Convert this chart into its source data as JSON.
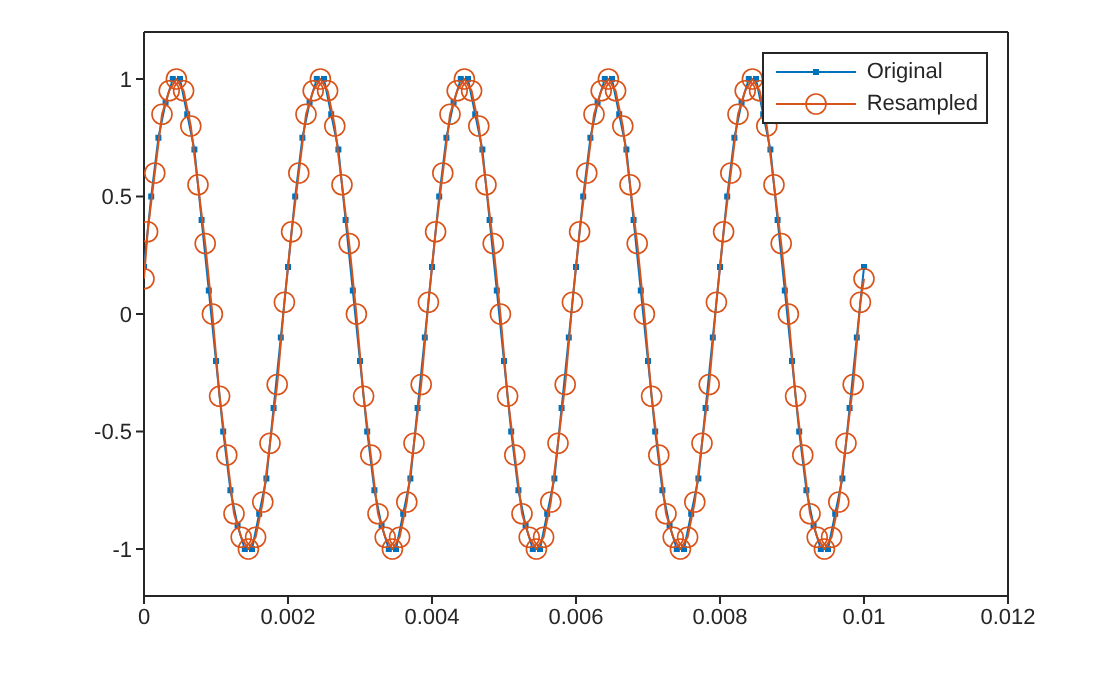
{
  "chart_data": {
    "type": "line",
    "xlim": [
      0,
      0.012
    ],
    "xticks": [
      0,
      0.002,
      0.004,
      0.006,
      0.008,
      0.01,
      0.012
    ],
    "ylim": [
      -1.2,
      1.2
    ],
    "yticks": [
      -1,
      -0.5,
      0,
      0.5,
      1
    ],
    "legend": "top right",
    "line_style": "solid",
    "series": [
      {
        "name": "Original",
        "color": "#0072bd",
        "marker": "square",
        "x": [
          0,
          0.0001,
          0.0002,
          0.0003,
          0.0004,
          0.0005,
          0.0006,
          0.0007,
          0.0008,
          0.0009,
          0.001,
          0.0011,
          0.0012,
          0.0013,
          0.0014,
          0.0015,
          0.0016,
          0.0017,
          0.0018,
          0.0019,
          0.002,
          0.0021,
          0.0022,
          0.0023,
          0.0024,
          0.0025,
          0.0026,
          0.0027,
          0.0028,
          0.0029,
          0.003,
          0.0031,
          0.0032,
          0.0033,
          0.0034,
          0.0035,
          0.0036,
          0.0037,
          0.0038,
          0.0039,
          0.004,
          0.0041,
          0.0042,
          0.0043,
          0.0044,
          0.0045,
          0.0046,
          0.0047,
          0.0048,
          0.0049,
          0.005,
          0.0051,
          0.0052,
          0.0053,
          0.0054,
          0.0055,
          0.0056,
          0.0057,
          0.0058,
          0.0059,
          0.006,
          0.0061,
          0.0062,
          0.0063,
          0.0064,
          0.0065,
          0.0066,
          0.0067,
          0.0068,
          0.0069,
          0.007,
          0.0071,
          0.0072,
          0.0073,
          0.0074,
          0.0075,
          0.0076,
          0.0077,
          0.0078,
          0.0079,
          0.008,
          0.0081,
          0.0082,
          0.0083,
          0.0084,
          0.0085,
          0.0086,
          0.0087,
          0.0088,
          0.0089,
          0.009,
          0.0091,
          0.0092,
          0.0093,
          0.0094,
          0.0095,
          0.0096,
          0.0097,
          0.0098,
          0.0099,
          0.01
        ],
        "values": [
          0.2,
          0.5,
          0.75,
          0.9,
          1,
          1,
          0.85,
          0.7,
          0.4,
          0.1,
          -0.2,
          -0.5,
          -0.75,
          -0.9,
          -1,
          -1,
          -0.85,
          -0.7,
          -0.4,
          -0.1,
          0.2,
          0.5,
          0.75,
          0.9,
          1,
          1,
          0.85,
          0.7,
          0.4,
          0.1,
          -0.2,
          -0.5,
          -0.75,
          -0.9,
          -1,
          -1,
          -0.85,
          -0.7,
          -0.4,
          -0.1,
          0.2,
          0.5,
          0.75,
          0.9,
          1,
          1,
          0.85,
          0.7,
          0.4,
          0.1,
          -0.2,
          -0.5,
          -0.75,
          -0.9,
          -1,
          -1,
          -0.85,
          -0.7,
          -0.4,
          -0.1,
          0.2,
          0.5,
          0.75,
          0.9,
          1,
          1,
          0.85,
          0.7,
          0.4,
          0.1,
          -0.2,
          -0.5,
          -0.75,
          -0.9,
          -1,
          -1,
          -0.85,
          -0.7,
          -0.4,
          -0.1,
          0.2,
          0.5,
          0.75,
          0.9,
          1,
          1,
          0.85,
          0.7,
          0.4,
          0.1,
          -0.2,
          -0.5,
          -0.75,
          -0.9,
          -1,
          -1,
          -0.85,
          -0.7,
          -0.4,
          -0.1,
          0.2
        ]
      },
      {
        "name": "Resampled",
        "color": "#d95319",
        "marker": "circle",
        "x": [
          0,
          5e-05,
          0.00015,
          0.00025,
          0.00035,
          0.00045,
          0.00055,
          0.00065,
          0.00075,
          0.00085,
          0.00095,
          0.00105,
          0.00115,
          0.00125,
          0.00135,
          0.00145,
          0.00155,
          0.00165,
          0.00175,
          0.00185,
          0.00195,
          0.00205,
          0.00215,
          0.00225,
          0.00235,
          0.00245,
          0.00255,
          0.00265,
          0.00275,
          0.00285,
          0.00295,
          0.00305,
          0.00315,
          0.00325,
          0.00335,
          0.00345,
          0.00355,
          0.00365,
          0.00375,
          0.00385,
          0.00395,
          0.00405,
          0.00415,
          0.00425,
          0.00435,
          0.00445,
          0.00455,
          0.00465,
          0.00475,
          0.00485,
          0.00495,
          0.00505,
          0.00515,
          0.00525,
          0.00535,
          0.00545,
          0.00555,
          0.00565,
          0.00575,
          0.00585,
          0.00595,
          0.00605,
          0.00615,
          0.00625,
          0.00635,
          0.00645,
          0.00655,
          0.00665,
          0.00675,
          0.00685,
          0.00695,
          0.00705,
          0.00715,
          0.00725,
          0.00735,
          0.00745,
          0.00755,
          0.00765,
          0.00775,
          0.00785,
          0.00795,
          0.00805,
          0.00815,
          0.00825,
          0.00835,
          0.00845,
          0.00855,
          0.00865,
          0.00875,
          0.00885,
          0.00895,
          0.00905,
          0.00915,
          0.00925,
          0.00935,
          0.00945,
          0.00955,
          0.00965,
          0.00975,
          0.00985,
          0.00995,
          0.01
        ],
        "values": [
          0.15,
          0.35,
          0.6,
          0.85,
          0.95,
          1,
          0.95,
          0.8,
          0.55,
          0.3,
          0,
          -0.35,
          -0.6,
          -0.85,
          -0.95,
          -1,
          -0.95,
          -0.8,
          -0.55,
          -0.3,
          0.05,
          0.35,
          0.6,
          0.85,
          0.95,
          1,
          0.95,
          0.8,
          0.55,
          0.3,
          0,
          -0.35,
          -0.6,
          -0.85,
          -0.95,
          -1,
          -0.95,
          -0.8,
          -0.55,
          -0.3,
          0.05,
          0.35,
          0.6,
          0.85,
          0.95,
          1,
          0.95,
          0.8,
          0.55,
          0.3,
          0,
          -0.35,
          -0.6,
          -0.85,
          -0.95,
          -1,
          -0.95,
          -0.8,
          -0.55,
          -0.3,
          0.05,
          0.35,
          0.6,
          0.85,
          0.95,
          1,
          0.95,
          0.8,
          0.55,
          0.3,
          0,
          -0.35,
          -0.6,
          -0.85,
          -0.95,
          -1,
          -0.95,
          -0.8,
          -0.55,
          -0.3,
          0.05,
          0.35,
          0.6,
          0.85,
          0.95,
          1,
          0.95,
          0.8,
          0.55,
          0.3,
          0,
          -0.35,
          -0.6,
          -0.85,
          -0.95,
          -1,
          -0.95,
          -0.8,
          -0.55,
          -0.3,
          0.05,
          0.15
        ]
      }
    ]
  }
}
